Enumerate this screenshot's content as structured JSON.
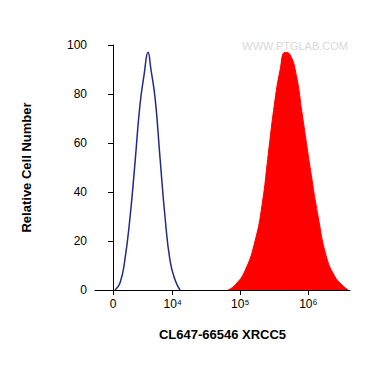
{
  "chart_data": {
    "type": "line",
    "watermark": "WWW.PTGLAB.COM",
    "x_label": "CL647-66546 XRCC5",
    "y_label": "Relative Cell Number",
    "xlim": [
      -1750,
      4100000
    ],
    "xticks": [
      0,
      {
        "value": 10000,
        "label": "10⁴"
      },
      {
        "value": 100000,
        "label": "10⁵"
      },
      {
        "value": 1000000,
        "label": "10⁶"
      }
    ],
    "ylim": [
      0,
      100
    ],
    "yticks": [
      0,
      20,
      40,
      60,
      80,
      100
    ],
    "grid": false,
    "series": [
      {
        "type": "line",
        "color": "#1f2a8a",
        "x": [
          180,
          650,
          1100,
          1650,
          2200,
          2800,
          3400,
          4000,
          4500,
          5300,
          6300,
          7600,
          9100,
          10900,
          12900
        ],
        "values": [
          0,
          3,
          12,
          30,
          52,
          75,
          88,
          97,
          90,
          78,
          55,
          30,
          12,
          4,
          0
        ]
      },
      {
        "type": "area",
        "color": "#ff0000",
        "x": [
          66300,
          84000,
          118000,
          165000,
          210000,
          257000,
          315000,
          386000,
          457000,
          541000,
          663000,
          812000,
          1064000,
          1395000,
          1829000,
          2399000,
          3146000,
          3855000
        ],
        "values": [
          0,
          2,
          8,
          20,
          35,
          55,
          75,
          90,
          97,
          96,
          88,
          72,
          50,
          30,
          14,
          6,
          2,
          0
        ]
      }
    ]
  }
}
